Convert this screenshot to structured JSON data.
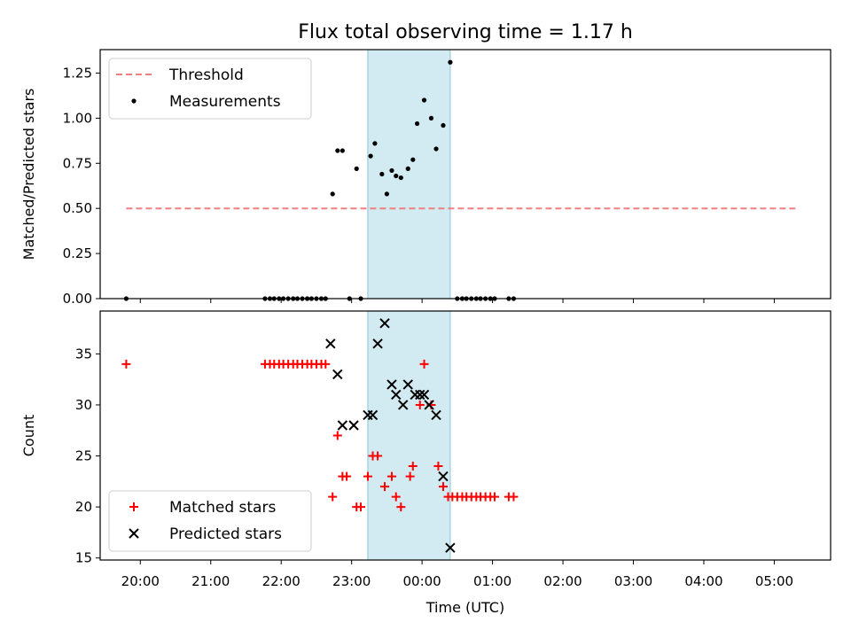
{
  "title": "Flux total observing time = 1.17 h",
  "colors": {
    "threshold": "#f08080",
    "measurement": "#000000",
    "matched": "#ff0000",
    "predicted": "#000000",
    "span": "#add8e6"
  },
  "chart_data": [
    {
      "type": "scatter",
      "ylabel": "Matched/Predicted stars",
      "xlim": [
        -0.57,
        9.8
      ],
      "ylim": [
        0,
        1.38
      ],
      "yticks": [
        0,
        0.25,
        0.5,
        0.75,
        1.0,
        1.25
      ],
      "ytick_labels": [
        "0.00",
        "0.25",
        "0.50",
        "0.75",
        "1.00",
        "1.25"
      ],
      "shaded_span": [
        3.23,
        4.4
      ],
      "legend": {
        "position": "upper-left",
        "entries": [
          "Threshold",
          "Measurements"
        ]
      },
      "series": [
        {
          "name": "Threshold",
          "kind": "line",
          "x": [
            -0.2,
            9.3
          ],
          "y": [
            0.5,
            0.5
          ]
        },
        {
          "name": "Measurements",
          "kind": "scatter",
          "x": [
            -0.2,
            1.77,
            1.84,
            1.9,
            1.97,
            2.03,
            2.1,
            2.17,
            2.23,
            2.3,
            2.37,
            2.43,
            2.5,
            2.57,
            2.63,
            2.73,
            2.8,
            2.87,
            2.97,
            3.07,
            3.13,
            3.27,
            3.33,
            3.43,
            3.5,
            3.57,
            3.63,
            3.7,
            3.8,
            3.87,
            3.93,
            4.03,
            4.13,
            4.2,
            4.3,
            4.4,
            4.5,
            4.57,
            4.63,
            4.7,
            4.77,
            4.83,
            4.9,
            4.97,
            5.03,
            5.23,
            5.3
          ],
          "y": [
            0,
            0,
            0,
            0,
            0,
            0,
            0,
            0,
            0,
            0,
            0,
            0,
            0,
            0,
            0,
            0.58,
            0.82,
            0.82,
            0,
            0.72,
            0,
            0.79,
            0.86,
            0.69,
            0.58,
            0.71,
            0.68,
            0.67,
            0.72,
            0.77,
            0.97,
            1.1,
            1.0,
            0.83,
            0.96,
            1.31,
            0,
            0,
            0,
            0,
            0,
            0,
            0,
            0,
            0,
            0,
            0
          ]
        }
      ]
    },
    {
      "type": "scatter",
      "ylabel": "Count",
      "xlabel": "Time (UTC)",
      "xlim": [
        -0.57,
        9.8
      ],
      "ylim": [
        14.8,
        39.2
      ],
      "yticks": [
        15,
        20,
        25,
        30,
        35
      ],
      "ytick_labels": [
        "15",
        "20",
        "25",
        "30",
        "35"
      ],
      "xticks": [
        0,
        1,
        2,
        3,
        4,
        5,
        6,
        7,
        8,
        9
      ],
      "xtick_labels": [
        "20:00",
        "21:00",
        "22:00",
        "23:00",
        "00:00",
        "01:00",
        "02:00",
        "03:00",
        "04:00",
        "05:00"
      ],
      "shaded_span": [
        3.23,
        4.4
      ],
      "legend": {
        "position": "lower-left",
        "entries": [
          "Matched stars",
          "Predicted stars"
        ]
      },
      "series": [
        {
          "name": "Matched stars",
          "kind": "scatter",
          "x": [
            -0.2,
            1.77,
            1.84,
            1.9,
            1.97,
            2.03,
            2.1,
            2.17,
            2.23,
            2.3,
            2.37,
            2.43,
            2.5,
            2.57,
            2.63,
            2.73,
            2.8,
            2.87,
            2.93,
            3.07,
            3.13,
            3.23,
            3.3,
            3.37,
            3.47,
            3.57,
            3.63,
            3.7,
            3.83,
            3.87,
            3.97,
            4.03,
            4.13,
            4.23,
            4.3,
            4.37,
            4.43,
            4.5,
            4.57,
            4.63,
            4.7,
            4.77,
            4.83,
            4.9,
            4.97,
            5.03,
            5.23,
            5.3
          ],
          "y": [
            34,
            34,
            34,
            34,
            34,
            34,
            34,
            34,
            34,
            34,
            34,
            34,
            34,
            34,
            34,
            21,
            27,
            23,
            23,
            20,
            20,
            23,
            25,
            25,
            22,
            23,
            21,
            20,
            23,
            24,
            30,
            34,
            30,
            24,
            22,
            21,
            21,
            21,
            21,
            21,
            21,
            21,
            21,
            21,
            21,
            21,
            21,
            21
          ]
        },
        {
          "name": "Predicted stars",
          "kind": "scatter",
          "x": [
            2.7,
            2.8,
            2.87,
            3.03,
            3.23,
            3.3,
            3.37,
            3.47,
            3.57,
            3.63,
            3.73,
            3.8,
            3.9,
            3.97,
            4.03,
            4.1,
            4.2,
            4.3,
            4.4
          ],
          "y": [
            36,
            33,
            28,
            28,
            29,
            29,
            36,
            38,
            32,
            31,
            30,
            32,
            31,
            31,
            31,
            30,
            29,
            23,
            16
          ]
        }
      ]
    }
  ]
}
